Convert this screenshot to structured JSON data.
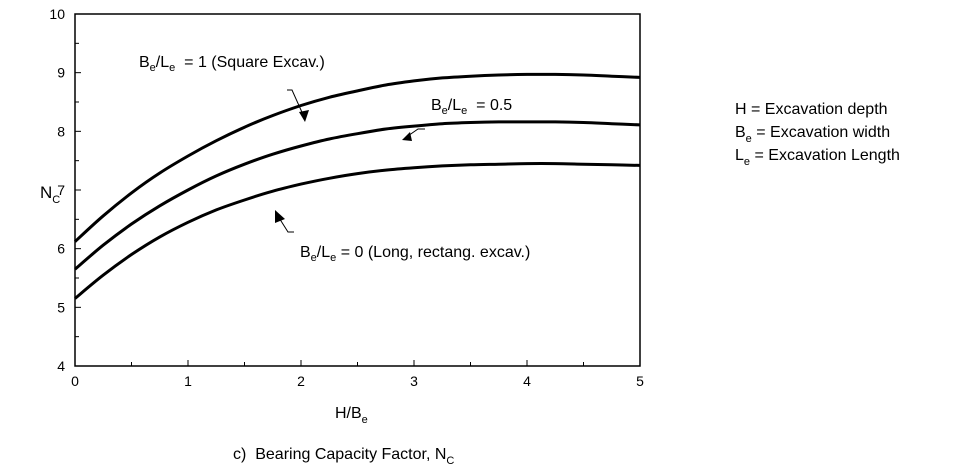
{
  "chart_data": {
    "type": "line",
    "caption": {
      "prefix": "c)  Bearing Capacity Factor, N",
      "sub": "C"
    },
    "xlabel": {
      "main": "H/B",
      "sub": "e"
    },
    "ylabel": {
      "main": "N",
      "sub": "C"
    },
    "xlim": [
      0,
      5
    ],
    "ylim": [
      4,
      10
    ],
    "x_ticks": [
      0,
      1,
      2,
      3,
      4,
      5
    ],
    "y_ticks": [
      4,
      5,
      6,
      7,
      8,
      9,
      10
    ],
    "x_tick_labels": [
      "0",
      "1",
      "2",
      "3",
      "4",
      "5"
    ],
    "y_tick_labels": [
      "4",
      "5",
      "6",
      "7",
      "8",
      "9",
      "10"
    ],
    "grid": false,
    "series": [
      {
        "x": [
          0,
          0.25,
          0.5,
          0.75,
          1,
          1.25,
          1.5,
          1.75,
          2,
          2.25,
          2.5,
          2.75,
          3,
          3.25,
          3.5,
          3.75,
          4,
          4.25,
          4.5,
          4.75,
          5
        ],
        "y": [
          6.12,
          6.56,
          6.95,
          7.29,
          7.58,
          7.84,
          8.07,
          8.27,
          8.44,
          8.58,
          8.69,
          8.79,
          8.86,
          8.91,
          8.94,
          8.96,
          8.97,
          8.97,
          8.96,
          8.94,
          8.92
        ],
        "label": {
          "p1": "B",
          "s1": "e",
          "p2": "/L",
          "s2": "e",
          "p3": "  = 1 (Square Excav.)"
        }
      },
      {
        "x": [
          0,
          0.25,
          0.5,
          0.75,
          1,
          1.25,
          1.5,
          1.75,
          2,
          2.25,
          2.5,
          2.75,
          3,
          3.25,
          3.5,
          3.75,
          4,
          4.25,
          4.5,
          4.75,
          5
        ],
        "y": [
          5.65,
          6.06,
          6.42,
          6.73,
          7.0,
          7.24,
          7.44,
          7.61,
          7.75,
          7.87,
          7.96,
          8.04,
          8.09,
          8.13,
          8.15,
          8.16,
          8.16,
          8.16,
          8.15,
          8.13,
          8.11
        ],
        "label": {
          "p1": "B",
          "s1": "e",
          "p2": "/L",
          "s2": "e",
          "p3": "  = 0.5"
        }
      },
      {
        "x": [
          0,
          0.25,
          0.5,
          0.75,
          1,
          1.25,
          1.5,
          1.75,
          2,
          2.25,
          2.5,
          2.75,
          3,
          3.25,
          3.5,
          3.75,
          4,
          4.25,
          4.5,
          4.75,
          5
        ],
        "y": [
          5.15,
          5.55,
          5.9,
          6.2,
          6.45,
          6.66,
          6.83,
          6.98,
          7.1,
          7.2,
          7.28,
          7.34,
          7.38,
          7.41,
          7.43,
          7.44,
          7.45,
          7.45,
          7.44,
          7.43,
          7.42
        ],
        "label": {
          "p1": "B",
          "s1": "e",
          "p2": "/L",
          "s2": "e",
          "p3": " = 0 (Long, rectang. excav.)"
        }
      }
    ],
    "legend_notes": [
      {
        "pre": "H = Excavation depth",
        "sub": "",
        "post": ""
      },
      {
        "pre": "B",
        "sub": "e",
        "post": " = Excavation width"
      },
      {
        "pre": "L",
        "sub": "e",
        "post": " = Excavation Length"
      }
    ]
  }
}
